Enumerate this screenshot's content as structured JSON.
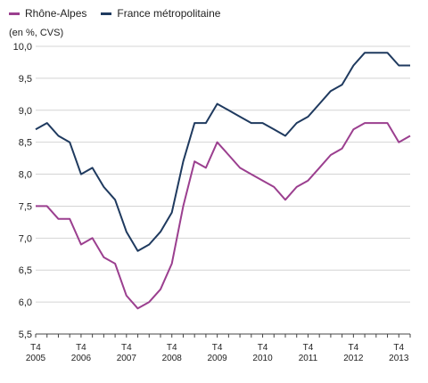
{
  "chart_data": {
    "type": "line",
    "unit_label": "(en %, CVS)",
    "ylim": [
      5.5,
      10.0
    ],
    "yticks": [
      "5,5",
      "6,0",
      "6,5",
      "7,0",
      "7,5",
      "8,0",
      "8,5",
      "9,0",
      "9,5",
      "10,0"
    ],
    "grid": "horizontal",
    "legend": "top-left",
    "x_tick_labels": [
      {
        "quarter": "T4",
        "year": "2005"
      },
      {
        "quarter": "T4",
        "year": "2006"
      },
      {
        "quarter": "T4",
        "year": "2007"
      },
      {
        "quarter": "T4",
        "year": "2008"
      },
      {
        "quarter": "T4",
        "year": "2009"
      },
      {
        "quarter": "T4",
        "year": "2010"
      },
      {
        "quarter": "T4",
        "year": "2011"
      },
      {
        "quarter": "T4",
        "year": "2012"
      },
      {
        "quarter": "T4",
        "year": "2013"
      }
    ],
    "x": [
      "T4 2005",
      "T1 2006",
      "T2 2006",
      "T3 2006",
      "T4 2006",
      "T1 2007",
      "T2 2007",
      "T3 2007",
      "T4 2007",
      "T1 2008",
      "T2 2008",
      "T3 2008",
      "T4 2008",
      "T1 2009",
      "T2 2009",
      "T3 2009",
      "T4 2009",
      "T1 2010",
      "T2 2010",
      "T3 2010",
      "T4 2010",
      "T1 2011",
      "T2 2011",
      "T3 2011",
      "T4 2011",
      "T1 2012",
      "T2 2012",
      "T3 2012",
      "T4 2012",
      "T1 2013",
      "T2 2013",
      "T3 2013",
      "T4 2013",
      "T1 2014"
    ],
    "series": [
      {
        "name": "Rhône-Alpes",
        "color": "#9b3f8f",
        "values": [
          7.5,
          7.5,
          7.3,
          7.3,
          6.9,
          7.0,
          6.7,
          6.6,
          6.1,
          5.9,
          6.0,
          6.2,
          6.6,
          7.5,
          8.2,
          8.1,
          8.5,
          8.3,
          8.1,
          8.0,
          7.9,
          7.8,
          7.6,
          7.8,
          7.9,
          8.1,
          8.3,
          8.4,
          8.7,
          8.8,
          8.8,
          8.8,
          8.5,
          8.6
        ]
      },
      {
        "name": "France métropolitaine",
        "color": "#1f3a5f",
        "values": [
          8.7,
          8.8,
          8.6,
          8.5,
          8.0,
          8.1,
          7.8,
          7.6,
          7.1,
          6.8,
          6.9,
          7.1,
          7.4,
          8.2,
          8.8,
          8.8,
          9.1,
          9.0,
          8.9,
          8.8,
          8.8,
          8.7,
          8.6,
          8.8,
          8.9,
          9.1,
          9.3,
          9.4,
          9.7,
          9.9,
          9.9,
          9.9,
          9.7,
          9.7
        ]
      }
    ]
  }
}
